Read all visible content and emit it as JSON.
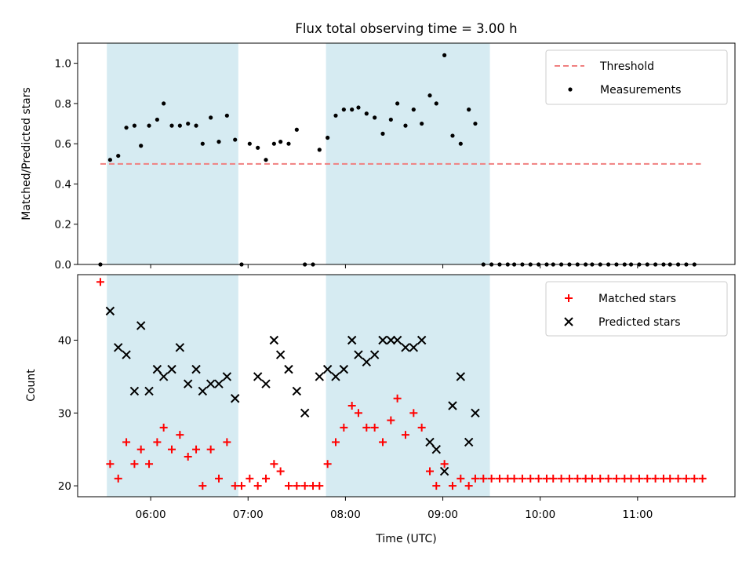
{
  "colors": {
    "band": "#add8e6",
    "threshold": "#f08080",
    "measurement": "#000000",
    "matched": "#ff0000",
    "predicted": "#000000"
  },
  "chart_data": [
    {
      "type": "scatter",
      "title": "Flux total observing time = 3.00 h",
      "ylabel": "Matched/Predicted stars",
      "ylim": [
        0,
        1.1
      ],
      "yticks": [
        "0.0",
        "0.2",
        "0.4",
        "0.6",
        "0.8",
        "1.0"
      ],
      "xlim": [
        "05:15",
        "12:00"
      ],
      "bands": [
        [
          "05:33",
          "06:54"
        ],
        [
          "07:48",
          "09:29"
        ]
      ],
      "threshold": {
        "name": "Threshold",
        "y": 0.5,
        "x": [
          "05:29",
          "11:39"
        ]
      },
      "series": [
        {
          "name": "Measurements",
          "marker": "dot",
          "points": [
            [
              "05:29",
              0.0
            ],
            [
              "05:35",
              0.52
            ],
            [
              "05:40",
              0.54
            ],
            [
              "05:45",
              0.68
            ],
            [
              "05:50",
              0.69
            ],
            [
              "05:54",
              0.59
            ],
            [
              "05:59",
              0.69
            ],
            [
              "06:04",
              0.72
            ],
            [
              "06:08",
              0.8
            ],
            [
              "06:13",
              0.69
            ],
            [
              "06:18",
              0.69
            ],
            [
              "06:23",
              0.7
            ],
            [
              "06:28",
              0.69
            ],
            [
              "06:32",
              0.6
            ],
            [
              "06:37",
              0.73
            ],
            [
              "06:42",
              0.61
            ],
            [
              "06:47",
              0.74
            ],
            [
              "06:52",
              0.62
            ],
            [
              "06:56",
              0.0
            ],
            [
              "07:01",
              0.6
            ],
            [
              "07:06",
              0.58
            ],
            [
              "07:11",
              0.52
            ],
            [
              "07:16",
              0.6
            ],
            [
              "07:20",
              0.61
            ],
            [
              "07:25",
              0.6
            ],
            [
              "07:30",
              0.67
            ],
            [
              "07:35",
              0.0
            ],
            [
              "07:40",
              0.0
            ],
            [
              "07:44",
              0.57
            ],
            [
              "07:49",
              0.63
            ],
            [
              "07:54",
              0.74
            ],
            [
              "07:59",
              0.77
            ],
            [
              "08:04",
              0.77
            ],
            [
              "08:08",
              0.78
            ],
            [
              "08:13",
              0.75
            ],
            [
              "08:18",
              0.73
            ],
            [
              "08:23",
              0.65
            ],
            [
              "08:28",
              0.72
            ],
            [
              "08:32",
              0.8
            ],
            [
              "08:37",
              0.69
            ],
            [
              "08:42",
              0.77
            ],
            [
              "08:47",
              0.7
            ],
            [
              "08:52",
              0.84
            ],
            [
              "08:56",
              0.8
            ],
            [
              "09:01",
              1.04
            ],
            [
              "09:06",
              0.64
            ],
            [
              "09:11",
              0.6
            ],
            [
              "09:16",
              0.77
            ],
            [
              "09:20",
              0.7
            ],
            [
              "09:25",
              0.0
            ],
            [
              "09:30",
              0.0
            ],
            [
              "09:35",
              0.0
            ],
            [
              "09:40",
              0.0
            ],
            [
              "09:44",
              0.0
            ],
            [
              "09:49",
              0.0
            ],
            [
              "09:54",
              0.0
            ],
            [
              "09:59",
              0.0
            ],
            [
              "10:04",
              0.0
            ],
            [
              "10:08",
              0.0
            ],
            [
              "10:13",
              0.0
            ],
            [
              "10:18",
              0.0
            ],
            [
              "10:23",
              0.0
            ],
            [
              "10:28",
              0.0
            ],
            [
              "10:32",
              0.0
            ],
            [
              "10:37",
              0.0
            ],
            [
              "10:42",
              0.0
            ],
            [
              "10:47",
              0.0
            ],
            [
              "10:52",
              0.0
            ],
            [
              "10:56",
              0.0
            ],
            [
              "11:01",
              0.0
            ],
            [
              "11:06",
              0.0
            ],
            [
              "11:11",
              0.0
            ],
            [
              "11:16",
              0.0
            ],
            [
              "11:20",
              0.0
            ],
            [
              "11:25",
              0.0
            ],
            [
              "11:30",
              0.0
            ],
            [
              "11:35",
              0.0
            ]
          ]
        }
      ],
      "legend": {
        "placement": "top-right",
        "entries": [
          "Threshold",
          "Measurements"
        ]
      }
    },
    {
      "type": "scatter",
      "ylabel": "Count",
      "xlabel": "Time (UTC)",
      "ylim": [
        18.5,
        49
      ],
      "yticks": [
        "20",
        "30",
        "40"
      ],
      "xlim": [
        "05:15",
        "12:00"
      ],
      "xticks": [
        "06:00",
        "07:00",
        "08:00",
        "09:00",
        "10:00",
        "11:00"
      ],
      "bands": [
        [
          "05:33",
          "06:54"
        ],
        [
          "07:48",
          "09:29"
        ]
      ],
      "series": [
        {
          "name": "Matched stars",
          "marker": "plus",
          "points": [
            [
              "05:29",
              48
            ],
            [
              "05:35",
              23
            ],
            [
              "05:40",
              21
            ],
            [
              "05:45",
              26
            ],
            [
              "05:50",
              23
            ],
            [
              "05:54",
              25
            ],
            [
              "05:59",
              23
            ],
            [
              "06:04",
              26
            ],
            [
              "06:08",
              28
            ],
            [
              "06:13",
              25
            ],
            [
              "06:18",
              27
            ],
            [
              "06:23",
              24
            ],
            [
              "06:28",
              25
            ],
            [
              "06:32",
              20
            ],
            [
              "06:37",
              25
            ],
            [
              "06:42",
              21
            ],
            [
              "06:47",
              26
            ],
            [
              "06:52",
              20
            ],
            [
              "06:56",
              20
            ],
            [
              "07:01",
              21
            ],
            [
              "07:06",
              20
            ],
            [
              "07:11",
              21
            ],
            [
              "07:16",
              23
            ],
            [
              "07:20",
              22
            ],
            [
              "07:25",
              20
            ],
            [
              "07:30",
              20
            ],
            [
              "07:35",
              20
            ],
            [
              "07:40",
              20
            ],
            [
              "07:44",
              20
            ],
            [
              "07:49",
              23
            ],
            [
              "07:54",
              26
            ],
            [
              "07:59",
              28
            ],
            [
              "08:04",
              31
            ],
            [
              "08:08",
              30
            ],
            [
              "08:13",
              28
            ],
            [
              "08:18",
              28
            ],
            [
              "08:23",
              26
            ],
            [
              "08:28",
              29
            ],
            [
              "08:32",
              32
            ],
            [
              "08:37",
              27
            ],
            [
              "08:42",
              30
            ],
            [
              "08:47",
              28
            ],
            [
              "08:52",
              22
            ],
            [
              "08:56",
              20
            ],
            [
              "09:01",
              23
            ],
            [
              "09:06",
              20
            ],
            [
              "09:11",
              21
            ],
            [
              "09:16",
              20
            ],
            [
              "09:20",
              21
            ],
            [
              "09:25",
              21
            ],
            [
              "09:30",
              21
            ],
            [
              "09:35",
              21
            ],
            [
              "09:40",
              21
            ],
            [
              "09:44",
              21
            ],
            [
              "09:49",
              21
            ],
            [
              "09:54",
              21
            ],
            [
              "09:59",
              21
            ],
            [
              "10:04",
              21
            ],
            [
              "10:08",
              21
            ],
            [
              "10:13",
              21
            ],
            [
              "10:18",
              21
            ],
            [
              "10:23",
              21
            ],
            [
              "10:28",
              21
            ],
            [
              "10:32",
              21
            ],
            [
              "10:37",
              21
            ],
            [
              "10:42",
              21
            ],
            [
              "10:47",
              21
            ],
            [
              "10:52",
              21
            ],
            [
              "10:56",
              21
            ],
            [
              "11:01",
              21
            ],
            [
              "11:06",
              21
            ],
            [
              "11:11",
              21
            ],
            [
              "11:16",
              21
            ],
            [
              "11:20",
              21
            ],
            [
              "11:25",
              21
            ],
            [
              "11:30",
              21
            ],
            [
              "11:35",
              21
            ],
            [
              "11:40",
              21
            ]
          ]
        },
        {
          "name": "Predicted stars",
          "marker": "x",
          "points": [
            [
              "05:35",
              44
            ],
            [
              "05:40",
              39
            ],
            [
              "05:45",
              38
            ],
            [
              "05:50",
              33
            ],
            [
              "05:54",
              42
            ],
            [
              "05:59",
              33
            ],
            [
              "06:04",
              36
            ],
            [
              "06:08",
              35
            ],
            [
              "06:13",
              36
            ],
            [
              "06:18",
              39
            ],
            [
              "06:23",
              34
            ],
            [
              "06:28",
              36
            ],
            [
              "06:32",
              33
            ],
            [
              "06:37",
              34
            ],
            [
              "06:42",
              34
            ],
            [
              "06:47",
              35
            ],
            [
              "06:52",
              32
            ],
            [
              "07:06",
              35
            ],
            [
              "07:11",
              34
            ],
            [
              "07:16",
              40
            ],
            [
              "07:20",
              38
            ],
            [
              "07:25",
              36
            ],
            [
              "07:30",
              33
            ],
            [
              "07:35",
              30
            ],
            [
              "07:44",
              35
            ],
            [
              "07:49",
              36
            ],
            [
              "07:54",
              35
            ],
            [
              "07:59",
              36
            ],
            [
              "08:04",
              40
            ],
            [
              "08:08",
              38
            ],
            [
              "08:13",
              37
            ],
            [
              "08:18",
              38
            ],
            [
              "08:23",
              40
            ],
            [
              "08:28",
              40
            ],
            [
              "08:32",
              40
            ],
            [
              "08:37",
              39
            ],
            [
              "08:42",
              39
            ],
            [
              "08:47",
              40
            ],
            [
              "08:52",
              26
            ],
            [
              "08:56",
              25
            ],
            [
              "09:01",
              22
            ],
            [
              "09:06",
              31
            ],
            [
              "09:11",
              35
            ],
            [
              "09:16",
              26
            ],
            [
              "09:20",
              30
            ]
          ]
        }
      ],
      "legend": {
        "placement": "top-right",
        "entries": [
          "Matched stars",
          "Predicted stars"
        ]
      }
    }
  ]
}
